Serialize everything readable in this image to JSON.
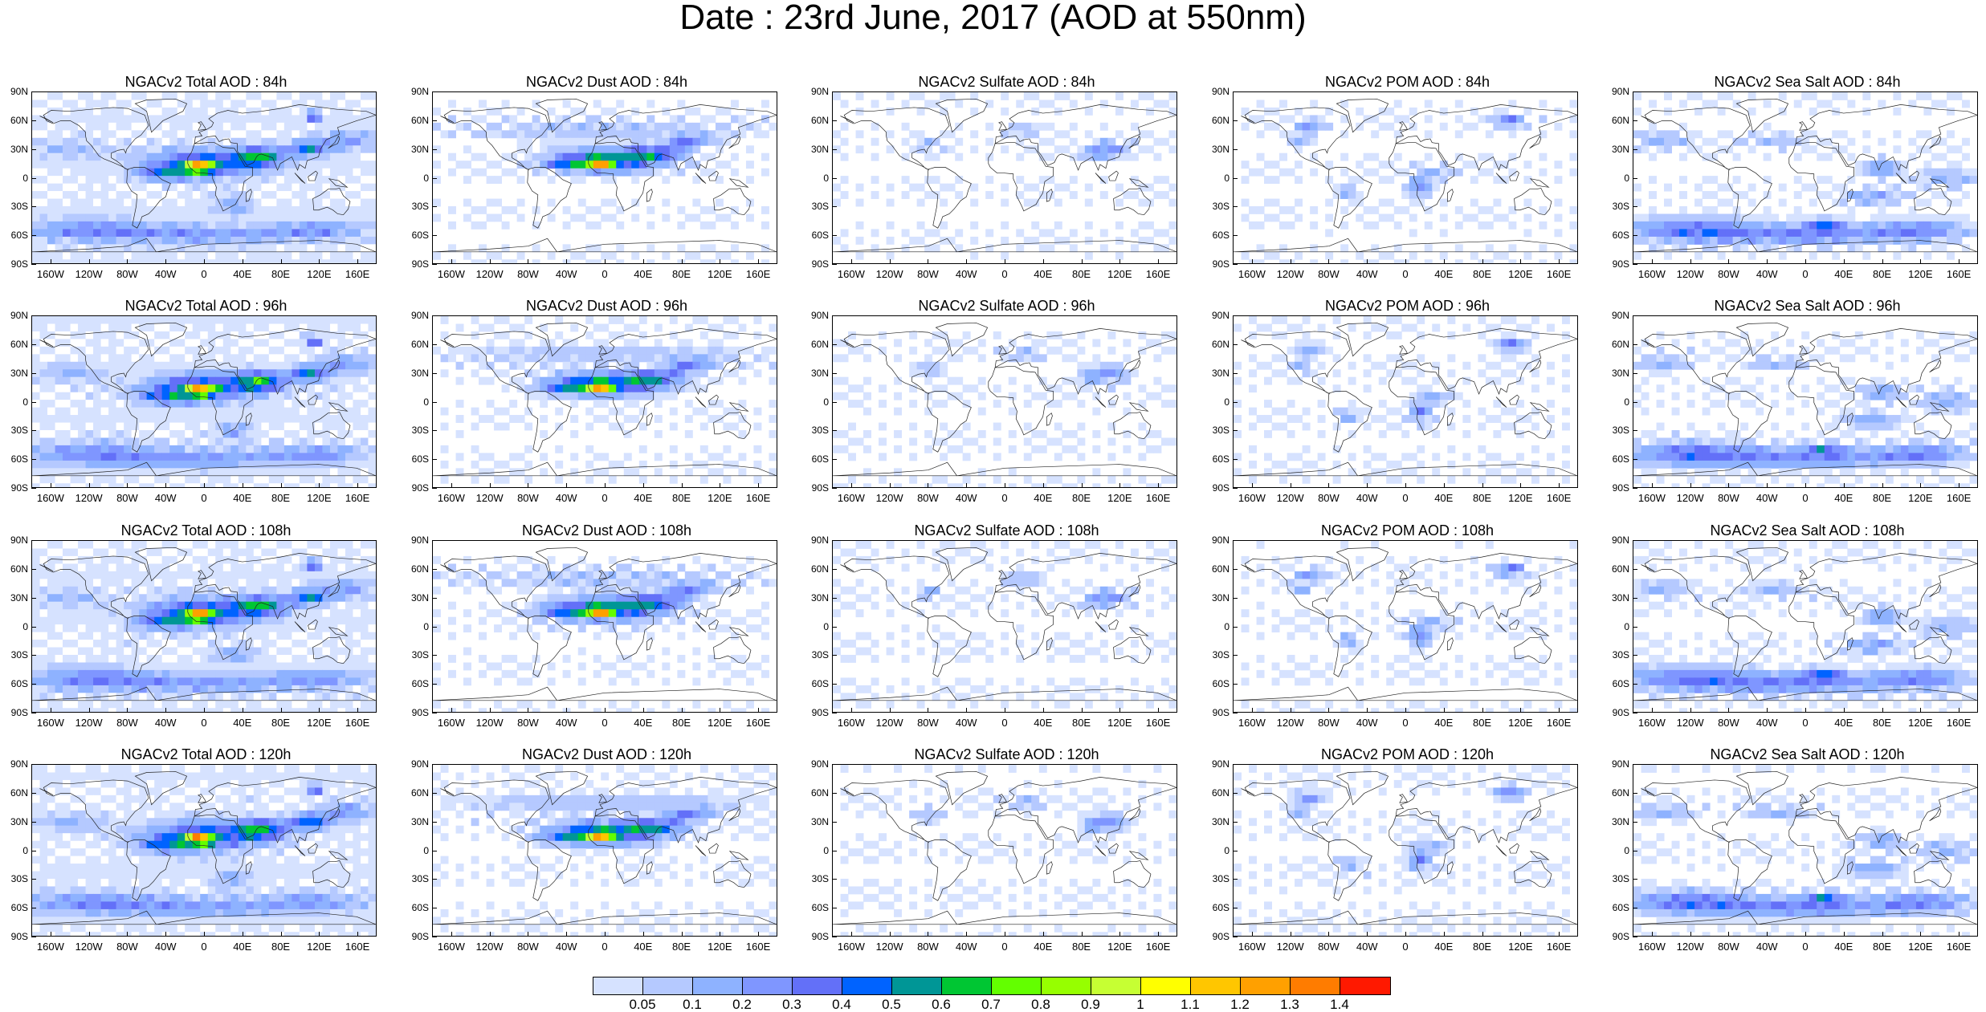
{
  "title": "Date : 23rd June, 2017 (AOD at 550nm)",
  "panels": [
    {
      "title": "NGACv2 Total AOD : 84h",
      "species": "total"
    },
    {
      "title": "NGACv2 Dust AOD : 84h",
      "species": "dust"
    },
    {
      "title": "NGACv2 Sulfate AOD : 84h",
      "species": "sulfate"
    },
    {
      "title": "NGACv2 POM AOD : 84h",
      "species": "pom"
    },
    {
      "title": "NGACv2 Sea Salt AOD : 84h",
      "species": "seasalt"
    },
    {
      "title": "NGACv2 Total AOD : 96h",
      "species": "total"
    },
    {
      "title": "NGACv2 Dust AOD : 96h",
      "species": "dust"
    },
    {
      "title": "NGACv2 Sulfate AOD : 96h",
      "species": "sulfate"
    },
    {
      "title": "NGACv2 POM AOD : 96h",
      "species": "pom"
    },
    {
      "title": "NGACv2 Sea Salt AOD : 96h",
      "species": "seasalt"
    },
    {
      "title": "NGACv2 Total AOD : 108h",
      "species": "total"
    },
    {
      "title": "NGACv2 Dust AOD : 108h",
      "species": "dust"
    },
    {
      "title": "NGACv2 Sulfate AOD : 108h",
      "species": "sulfate"
    },
    {
      "title": "NGACv2 POM AOD : 108h",
      "species": "pom"
    },
    {
      "title": "NGACv2 Sea Salt AOD : 108h",
      "species": "seasalt"
    },
    {
      "title": "NGACv2 Total AOD : 120h",
      "species": "total"
    },
    {
      "title": "NGACv2 Dust AOD : 120h",
      "species": "dust"
    },
    {
      "title": "NGACv2 Sulfate AOD : 120h",
      "species": "sulfate"
    },
    {
      "title": "NGACv2 POM AOD : 120h",
      "species": "pom"
    },
    {
      "title": "NGACv2 Sea Salt  AOD : 120h",
      "species": "seasalt"
    }
  ],
  "lat_ticks": [
    "90N",
    "60N",
    "30N",
    "0",
    "30S",
    "60S",
    "90S"
  ],
  "lon_ticks": [
    "160W",
    "120W",
    "80W",
    "40W",
    "0",
    "40E",
    "80E",
    "120E",
    "160E"
  ],
  "colorbar": {
    "colors": [
      "#ffffff",
      "#d6e2ff",
      "#b5c9ff",
      "#8eb2ff",
      "#7f96ff",
      "#6370f8",
      "#0063ff",
      "#009696",
      "#00c633",
      "#63ff00",
      "#96ff00",
      "#c6ff33",
      "#ffff00",
      "#ffc600",
      "#ffa000",
      "#ff7c00",
      "#ff1900"
    ],
    "labels": [
      "0.05",
      "0.1",
      "0.2",
      "0.3",
      "0.4",
      "0.5",
      "0.6",
      "0.7",
      "0.8",
      "0.9",
      "1",
      "1.1",
      "1.2",
      "1.3",
      "1.4"
    ]
  }
}
